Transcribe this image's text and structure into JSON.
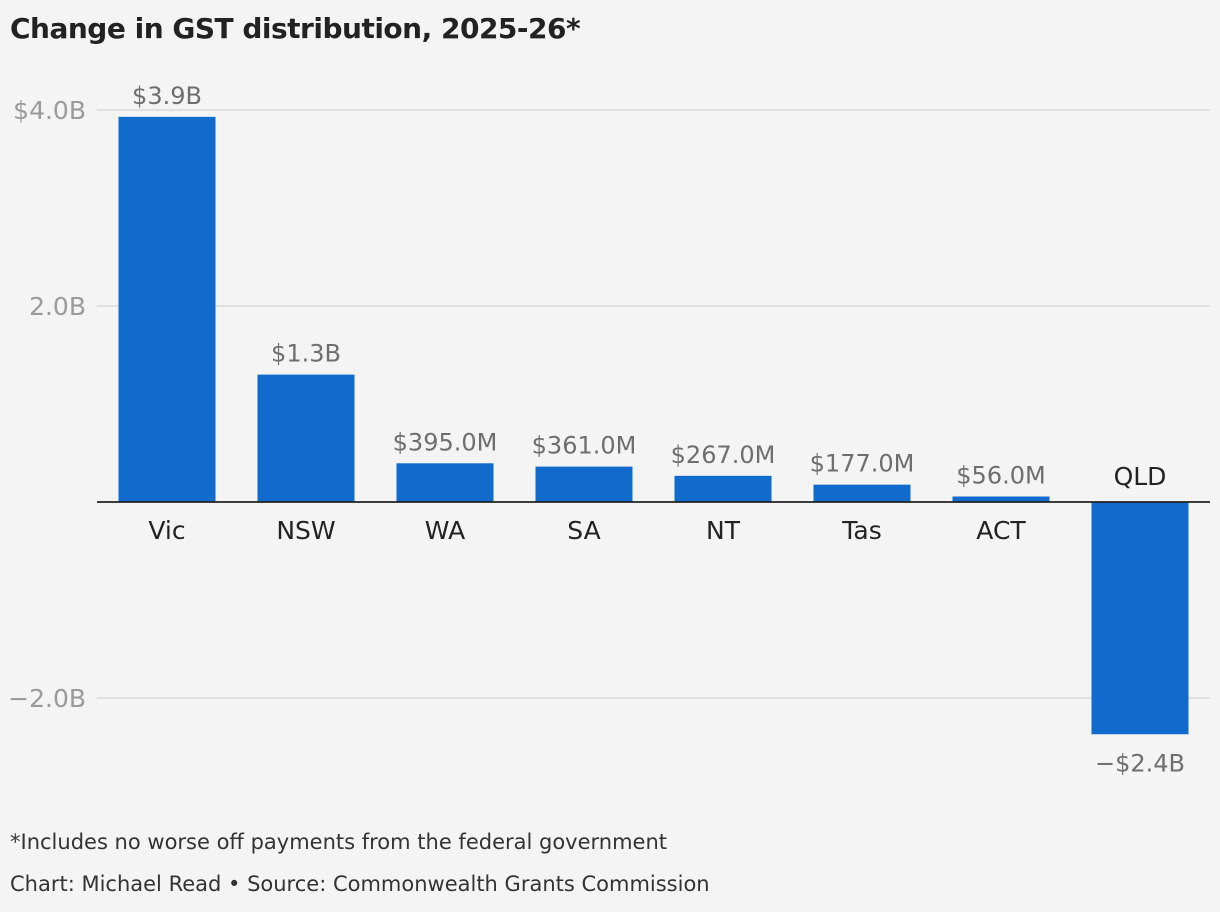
{
  "chart_data": {
    "type": "bar",
    "title": "Change in GST distribution, 2025-26*",
    "categories": [
      "Vic",
      "NSW",
      "WA",
      "SA",
      "NT",
      "Tas",
      "ACT",
      "QLD"
    ],
    "values": [
      3.93,
      1.3,
      0.395,
      0.361,
      0.267,
      0.177,
      0.056,
      -2.37
    ],
    "data_labels": [
      "$3.9B",
      "$1.3B",
      "$395.0M",
      "$361.0M",
      "$267.0M",
      "$177.0M",
      "$56.0M",
      "−$2.4B"
    ],
    "unit": "billion AUD",
    "ylim": [
      -2.0,
      4.0
    ],
    "yticks": [
      {
        "value": 4.0,
        "label": "$4.0B"
      },
      {
        "value": 2.0,
        "label": "2.0B"
      },
      {
        "value": -2.0,
        "label": "−2.0B"
      }
    ],
    "grid": true,
    "xlabel": "",
    "ylabel": "",
    "bar_color": "#116bcc",
    "zero_line_color": "#222222",
    "grid_color": "#d8d8d8"
  },
  "footnote": "*Includes no worse off payments from the federal government",
  "credit": "Chart: Michael Read • Source: Commonwealth Grants Commission"
}
